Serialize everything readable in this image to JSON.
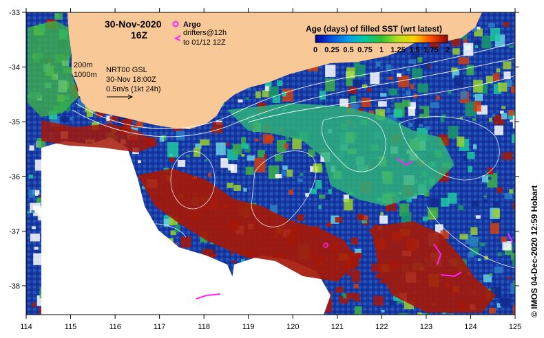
{
  "header": {
    "date": "30-Nov-2020",
    "hour": "16Z"
  },
  "argo_legend": {
    "argo_label": "Argo",
    "drifters_line1": "drifters@12h",
    "drifters_line2": "to 01/12 12Z"
  },
  "isobaths": {
    "shallow": "200m",
    "deep": "1000m"
  },
  "currents_legend": {
    "product": "NRT00 GSL",
    "datetime": "30-Nov 18:00Z",
    "scale": "0.5m/s (1kt 24h)"
  },
  "colorbar": {
    "title": "Age (days) of filled SST (wrt latest)",
    "tick_labels": [
      "0",
      "0.25",
      "0.5",
      "0.75",
      "1",
      "1.25",
      "1.5",
      "1.75",
      "2"
    ]
  },
  "axes": {
    "x_ticks": [
      "114",
      "115",
      "116",
      "117",
      "118",
      "119",
      "120",
      "121",
      "122",
      "123",
      "124",
      "125"
    ],
    "y_ticks": [
      "-33",
      "-34",
      "-35",
      "-36",
      "-37",
      "-38"
    ]
  },
  "credit": "© IMOS 04-Dec-2020 12:59 Hobart",
  "colors": {
    "land": "#f8c896",
    "ocean_deep": "#1836a8",
    "ocean_mid": "#2a7cc6",
    "teal": "#1ec8a0",
    "green": "#3cb04a",
    "red": "#a51808",
    "no_data": "#ffffff",
    "drifter": "#ff22ff"
  }
}
